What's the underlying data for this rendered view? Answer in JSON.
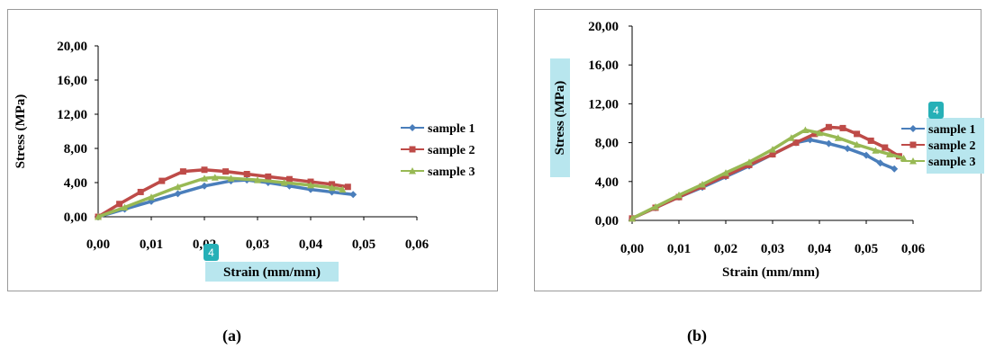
{
  "captions": {
    "a": "(a)",
    "b": "(b)"
  },
  "badge_number": "4",
  "chart_data": [
    {
      "type": "line",
      "panel": "a",
      "xlabel": "Strain (mm/mm)",
      "ylabel": "Stress (MPa)",
      "xlim": [
        0,
        0.06
      ],
      "ylim": [
        0,
        20
      ],
      "x_ticks": [
        "0,00",
        "0,01",
        "0,02",
        "0,03",
        "0,04",
        "0,05",
        "0,06"
      ],
      "y_ticks": [
        "0,00",
        "4,00",
        "8,00",
        "12,00",
        "16,00",
        "20,00"
      ],
      "grid": false,
      "legend_position": "right",
      "series": [
        {
          "name": "sample 1",
          "color": "#4a7ebb",
          "marker": "diamond",
          "x": [
            0,
            0.005,
            0.01,
            0.015,
            0.02,
            0.025,
            0.028,
            0.032,
            0.036,
            0.04,
            0.044,
            0.048
          ],
          "y": [
            0,
            0.9,
            1.8,
            2.7,
            3.6,
            4.2,
            4.3,
            4.0,
            3.6,
            3.2,
            2.9,
            2.6
          ]
        },
        {
          "name": "sample 2",
          "color": "#be4b48",
          "marker": "square",
          "x": [
            0,
            0.004,
            0.008,
            0.012,
            0.016,
            0.02,
            0.024,
            0.028,
            0.032,
            0.036,
            0.04,
            0.044,
            0.047
          ],
          "y": [
            0,
            1.5,
            2.9,
            4.2,
            5.3,
            5.5,
            5.3,
            5.0,
            4.7,
            4.4,
            4.1,
            3.8,
            3.5
          ]
        },
        {
          "name": "sample 3",
          "color": "#98b954",
          "marker": "triangle",
          "x": [
            0,
            0.005,
            0.01,
            0.015,
            0.02,
            0.022,
            0.025,
            0.03,
            0.035,
            0.04,
            0.044,
            0.046
          ],
          "y": [
            0,
            1.1,
            2.3,
            3.5,
            4.5,
            4.6,
            4.5,
            4.3,
            4.0,
            3.7,
            3.4,
            3.2
          ]
        }
      ]
    },
    {
      "type": "line",
      "panel": "b",
      "xlabel": "Strain (mm/mm)",
      "ylabel": "Stress (MPa)",
      "xlim": [
        0,
        0.06
      ],
      "ylim": [
        0,
        20
      ],
      "x_ticks": [
        "0,00",
        "0,01",
        "0,02",
        "0,03",
        "0,04",
        "0,05",
        "0,06"
      ],
      "y_ticks": [
        "0,00",
        "4,00",
        "8,00",
        "12,00",
        "16,00",
        "20,00"
      ],
      "grid": false,
      "legend_position": "right",
      "series": [
        {
          "name": "sample 1",
          "color": "#4a7ebb",
          "marker": "diamond",
          "x": [
            0,
            0.005,
            0.01,
            0.015,
            0.02,
            0.025,
            0.03,
            0.035,
            0.038,
            0.042,
            0.046,
            0.05,
            0.053,
            0.056
          ],
          "y": [
            0.2,
            1.3,
            2.4,
            3.4,
            4.5,
            5.6,
            6.8,
            8.0,
            8.3,
            7.9,
            7.4,
            6.7,
            5.9,
            5.3
          ]
        },
        {
          "name": "sample 2",
          "color": "#be4b48",
          "marker": "square",
          "x": [
            0,
            0.005,
            0.01,
            0.015,
            0.02,
            0.025,
            0.03,
            0.035,
            0.039,
            0.042,
            0.045,
            0.048,
            0.051,
            0.054,
            0.057
          ],
          "y": [
            0.2,
            1.3,
            2.4,
            3.5,
            4.6,
            5.7,
            6.8,
            8.0,
            8.9,
            9.6,
            9.5,
            8.9,
            8.2,
            7.5,
            6.6
          ]
        },
        {
          "name": "sample 3",
          "color": "#98b954",
          "marker": "triangle",
          "x": [
            0,
            0.005,
            0.01,
            0.015,
            0.02,
            0.025,
            0.03,
            0.034,
            0.037,
            0.04,
            0.044,
            0.048,
            0.052,
            0.055,
            0.058
          ],
          "y": [
            0.2,
            1.4,
            2.6,
            3.7,
            4.9,
            6.0,
            7.3,
            8.5,
            9.3,
            9.0,
            8.5,
            7.8,
            7.2,
            6.8,
            6.4
          ]
        }
      ]
    }
  ]
}
